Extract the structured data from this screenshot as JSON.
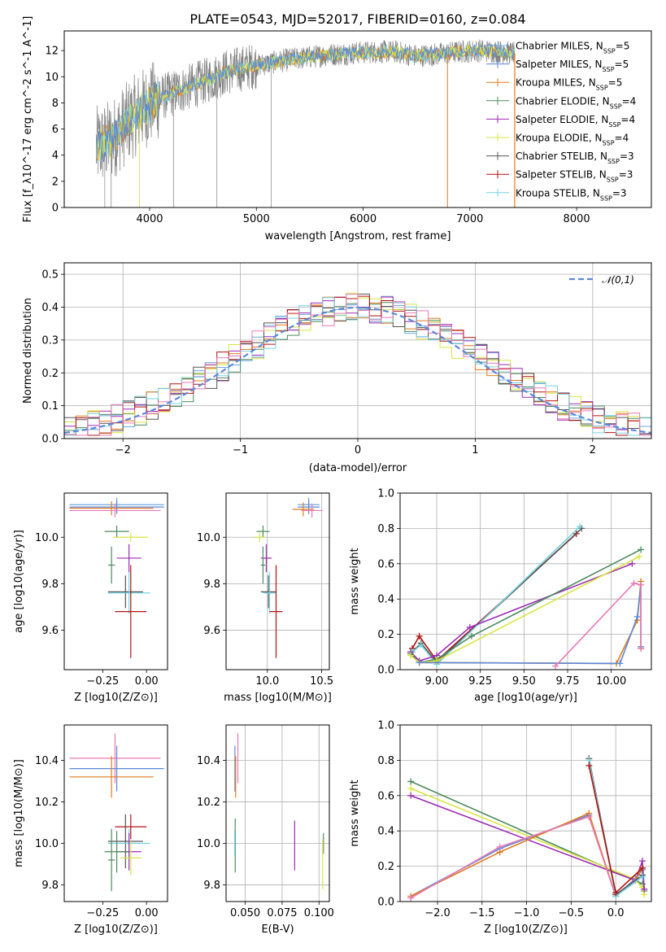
{
  "palette": {
    "Chabrier MILES": "#6fa8dc",
    "Salpeter MILES": "#5c89d6",
    "Kroupa MILES": "#e07b1c",
    "Chabrier ELODIE": "#4e8a5f",
    "Salpeter ELODIE": "#9c2db5",
    "Kroupa ELODIE": "#d9e544",
    "Chabrier STELIB": "#555555",
    "Salpeter STELIB": "#b01313",
    "Kroupa STELIB": "#77d4e0",
    "pink": "#e87ab5",
    "observed": "#808080"
  },
  "chart_data": [
    {
      "id": "spectrum",
      "type": "line",
      "title": "PLATE=0543, MJD=52017, FIBERID=0160, z=0.084",
      "xlabel": "wavelength [Angstrom, rest frame]",
      "ylabel": "Flux [f_λ10^-17 erg cm^-2 s^-1 A^-1]",
      "xlim": [
        3200,
        8700
      ],
      "ylim": [
        0,
        13.5
      ],
      "xticks": [
        "4000",
        "5000",
        "6000",
        "7000",
        "8000"
      ],
      "yticks": [
        "0",
        "2",
        "4",
        "6",
        "8",
        "10",
        "12"
      ],
      "grid": false,
      "legend": "upper-right",
      "legend_entries": [
        {
          "name": "Chabrier MILES",
          "nssp": "5"
        },
        {
          "name": "Salpeter MILES",
          "nssp": "5"
        },
        {
          "name": "Kroupa MILES",
          "nssp": "5"
        },
        {
          "name": "Chabrier ELODIE",
          "nssp": "4"
        },
        {
          "name": "Salpeter ELODIE",
          "nssp": "4"
        },
        {
          "name": "Kroupa ELODIE",
          "nssp": "4"
        },
        {
          "name": "Chabrier STELIB",
          "nssp": "3"
        },
        {
          "name": "Salpeter STELIB",
          "nssp": "3"
        },
        {
          "name": "Kroupa STELIB",
          "nssp": "3"
        }
      ],
      "continuum": {
        "x": [
          3500,
          3650,
          3800,
          3950,
          4100,
          4300,
          4500,
          4700,
          4900,
          5100,
          5300,
          5500,
          5700,
          5900,
          6100,
          6300,
          6500,
          6700,
          6900,
          7100,
          7300,
          7420
        ],
        "y": [
          4.6,
          5.2,
          6.6,
          7.6,
          8.4,
          9.0,
          9.6,
          10.3,
          10.7,
          11.0,
          11.3,
          11.5,
          11.7,
          11.8,
          11.9,
          11.9,
          11.6,
          11.7,
          11.9,
          12.0,
          11.9,
          11.8
        ]
      },
      "model_end_wavelength": 7420
    },
    {
      "id": "residuals",
      "type": "histogram",
      "xlabel": "(data-model)/error",
      "ylabel": "Normed distribution",
      "xlim": [
        -2.5,
        2.5
      ],
      "ylim": [
        0,
        0.535
      ],
      "xticks": [
        "−2",
        "−1",
        "0",
        "1",
        "2"
      ],
      "yticks": [
        "0.0",
        "0.1",
        "0.2",
        "0.3",
        "0.4",
        "0.5"
      ],
      "grid": true,
      "legend": "upper-right",
      "legend_label": "𝒩(0,1)",
      "bin_width": 0.1
    },
    {
      "id": "age-vs-Z",
      "type": "scatter",
      "xlabel": "Z [log10(Z/Z⊙)]",
      "ylabel": "age  [log10(age/yr)]",
      "xlim": [
        -0.47,
        0.12
      ],
      "ylim": [
        9.43,
        10.19
      ],
      "xticks": [
        {
          "v": -0.25,
          "t": "−0.25"
        },
        {
          "v": 0.0,
          "t": "0.00"
        }
      ],
      "yticks": [
        {
          "v": 9.6,
          "t": "9.6"
        },
        {
          "v": 9.8,
          "t": "9.8"
        },
        {
          "v": 10.0,
          "t": "10.0"
        }
      ],
      "grid": false,
      "points": [
        {
          "model": "Chabrier MILES",
          "x": -0.17,
          "xerr": 0.27,
          "y": 10.14,
          "yerr": 0.03
        },
        {
          "model": "Salpeter MILES",
          "x": -0.17,
          "xerr": 0.27,
          "y": 10.13,
          "yerr": 0.03
        },
        {
          "model": "Kroupa MILES",
          "x": -0.2,
          "xerr": 0.24,
          "y": 10.125,
          "yerr": 0.03
        },
        {
          "model": "pink",
          "x": -0.18,
          "xerr": 0.26,
          "y": 10.115,
          "yerr": 0.03
        },
        {
          "model": "Chabrier ELODIE",
          "x": -0.17,
          "xerr": 0.07,
          "y": 10.025,
          "yerr": 0.025
        },
        {
          "model": "Kroupa ELODIE",
          "x": -0.09,
          "xerr": 0.1,
          "y": 10.0,
          "yerr": 0.02
        },
        {
          "model": "Salpeter ELODIE",
          "x": -0.1,
          "xerr": 0.07,
          "y": 9.91,
          "yerr": 0.06
        },
        {
          "model": "Chabrier ELODIE",
          "x": -0.2,
          "xerr": 0.02,
          "y": 9.88,
          "yerr": 0.08
        },
        {
          "model": "Chabrier STELIB",
          "x": -0.12,
          "xerr": 0.1,
          "y": 9.765,
          "yerr": 0.07
        },
        {
          "model": "Kroupa STELIB",
          "x": -0.1,
          "xerr": 0.12,
          "y": 9.76,
          "yerr": 0.09
        },
        {
          "model": "Salpeter STELIB",
          "x": -0.09,
          "xerr": 0.09,
          "y": 9.68,
          "yerr": 0.2
        }
      ]
    },
    {
      "id": "age-vs-mass",
      "type": "scatter",
      "xlabel": "mass [log10(M/M⊙)]",
      "ylabel": "",
      "xlim": [
        9.62,
        10.57
      ],
      "ylim": [
        9.43,
        10.19
      ],
      "xticks": [
        {
          "v": 10.0,
          "t": "10.0"
        },
        {
          "v": 10.5,
          "t": "10.5"
        }
      ],
      "yticks": [
        {
          "v": 9.6,
          "t": "9.6"
        },
        {
          "v": 9.8,
          "t": "9.8"
        },
        {
          "v": 10.0,
          "t": "10.0"
        }
      ],
      "grid": true,
      "points": [
        {
          "model": "Chabrier MILES",
          "x": 10.38,
          "xerr": 0.1,
          "y": 10.14,
          "yerr": 0.03
        },
        {
          "model": "Salpeter MILES",
          "x": 10.38,
          "xerr": 0.1,
          "y": 10.13,
          "yerr": 0.03
        },
        {
          "model": "Kroupa MILES",
          "x": 10.33,
          "xerr": 0.1,
          "y": 10.12,
          "yerr": 0.03
        },
        {
          "model": "pink",
          "x": 10.41,
          "xerr": 0.1,
          "y": 10.115,
          "yerr": 0.03
        },
        {
          "model": "Chabrier ELODIE",
          "x": 9.96,
          "xerr": 0.06,
          "y": 10.025,
          "yerr": 0.025
        },
        {
          "model": "Kroupa ELODIE",
          "x": 9.93,
          "xerr": 0.05,
          "y": 10.0,
          "yerr": 0.02
        },
        {
          "model": "Salpeter ELODIE",
          "x": 9.99,
          "xerr": 0.05,
          "y": 9.91,
          "yerr": 0.06
        },
        {
          "model": "Chabrier ELODIE",
          "x": 9.96,
          "xerr": 0.02,
          "y": 9.88,
          "yerr": 0.08
        },
        {
          "model": "Chabrier STELIB",
          "x": 10.01,
          "xerr": 0.07,
          "y": 9.765,
          "yerr": 0.07
        },
        {
          "model": "Kroupa STELIB",
          "x": 10.02,
          "xerr": 0.06,
          "y": 9.76,
          "yerr": 0.09
        },
        {
          "model": "Salpeter STELIB",
          "x": 10.08,
          "xerr": 0.06,
          "y": 9.68,
          "yerr": 0.2
        }
      ]
    },
    {
      "id": "weight-vs-age",
      "type": "line",
      "xlabel": "age  [log10(age/yr)]",
      "ylabel": "mass weight",
      "xlim": [
        8.79,
        10.23
      ],
      "ylim": [
        0,
        1.0
      ],
      "xticks": [
        {
          "v": 9.0,
          "t": "9.00"
        },
        {
          "v": 9.25,
          "t": "9.25"
        },
        {
          "v": 9.5,
          "t": "9.50"
        },
        {
          "v": 9.75,
          "t": "9.75"
        },
        {
          "v": 10.0,
          "t": "10.00"
        }
      ],
      "yticks": [
        {
          "v": 0.0,
          "t": "0.0"
        },
        {
          "v": 0.2,
          "t": "0.2"
        },
        {
          "v": 0.4,
          "t": "0.4"
        },
        {
          "v": 0.6,
          "t": "0.6"
        },
        {
          "v": 0.8,
          "t": "0.8"
        },
        {
          "v": 1.0,
          "t": "1.0"
        }
      ],
      "grid": true,
      "series": [
        {
          "model": "Salpeter STELIB",
          "x": [
            8.86,
            8.9,
            9.0,
            9.8
          ],
          "y": [
            0.12,
            0.19,
            0.05,
            0.77
          ]
        },
        {
          "model": "Chabrier STELIB",
          "x": [
            8.86,
            8.91,
            9.0,
            9.83
          ],
          "y": [
            0.1,
            0.15,
            0.04,
            0.8
          ]
        },
        {
          "model": "Kroupa STELIB",
          "x": [
            8.86,
            8.91,
            9.0,
            9.82
          ],
          "y": [
            0.1,
            0.14,
            0.03,
            0.81
          ]
        },
        {
          "model": "Salpeter ELODIE",
          "x": [
            8.85,
            8.9,
            9.0,
            9.19,
            10.12
          ],
          "y": [
            0.1,
            0.05,
            0.08,
            0.24,
            0.6
          ]
        },
        {
          "model": "Chabrier ELODIE",
          "x": [
            8.85,
            8.9,
            9.0,
            9.2,
            10.17
          ],
          "y": [
            0.09,
            0.04,
            0.06,
            0.19,
            0.68
          ]
        },
        {
          "model": "Kroupa ELODIE",
          "x": [
            8.85,
            8.9,
            9.0,
            10.16
          ],
          "y": [
            0.08,
            0.04,
            0.05,
            0.64
          ]
        },
        {
          "model": "Kroupa MILES",
          "x": [
            8.9,
            10.03,
            10.15,
            10.17,
            10.17
          ],
          "y": [
            0.04,
            0.035,
            0.28,
            0.5,
            0.12
          ]
        },
        {
          "model": "Salpeter MILES",
          "x": [
            8.9,
            10.05,
            10.15,
            10.17,
            10.17
          ],
          "y": [
            0.04,
            0.035,
            0.3,
            0.48,
            0.13
          ]
        },
        {
          "model": "pink",
          "x": [
            9.68,
            10.13,
            10.17,
            10.17
          ],
          "y": [
            0.02,
            0.49,
            0.48,
            0.12
          ]
        }
      ]
    },
    {
      "id": "mass-vs-Z",
      "type": "scatter",
      "xlabel": "Z [log10(Z/Z⊙)]",
      "ylabel": "mass [log10(M/M⊙)]",
      "xlim": [
        -0.47,
        0.12
      ],
      "ylim": [
        9.72,
        10.57
      ],
      "xticks": [
        {
          "v": -0.25,
          "t": "−0.25"
        },
        {
          "v": 0.0,
          "t": "0.00"
        }
      ],
      "yticks": [
        {
          "v": 9.8,
          "t": "9.8"
        },
        {
          "v": 10.0,
          "t": "10.0"
        },
        {
          "v": 10.2,
          "t": "10.2"
        },
        {
          "v": 10.4,
          "t": "10.4"
        }
      ],
      "grid": false,
      "points": [
        {
          "model": "pink",
          "x": -0.18,
          "xerr": 0.26,
          "y": 10.41,
          "yerr": 0.12
        },
        {
          "model": "Salpeter MILES",
          "x": -0.17,
          "xerr": 0.27,
          "y": 10.36,
          "yerr": 0.11
        },
        {
          "model": "Kroupa MILES",
          "x": -0.2,
          "xerr": 0.24,
          "y": 10.32,
          "yerr": 0.1
        },
        {
          "model": "Salpeter STELIB",
          "x": -0.09,
          "xerr": 0.09,
          "y": 10.08,
          "yerr": 0.06
        },
        {
          "model": "Chabrier STELIB",
          "x": -0.12,
          "xerr": 0.1,
          "y": 10.01,
          "yerr": 0.13
        },
        {
          "model": "Kroupa STELIB",
          "x": -0.1,
          "xerr": 0.12,
          "y": 10.0,
          "yerr": 0.07
        },
        {
          "model": "Salpeter ELODIE",
          "x": -0.1,
          "xerr": 0.07,
          "y": 9.96,
          "yerr": 0.09
        },
        {
          "model": "Chabrier ELODIE",
          "x": -0.17,
          "xerr": 0.07,
          "y": 9.96,
          "yerr": 0.1
        },
        {
          "model": "Kroupa ELODIE",
          "x": -0.09,
          "xerr": 0.06,
          "y": 9.93,
          "yerr": 0.08
        },
        {
          "model": "Chabrier ELODIE",
          "x": -0.2,
          "xerr": 0.02,
          "y": 9.92,
          "yerr": 0.15
        }
      ]
    },
    {
      "id": "mass-vs-EBV",
      "type": "scatter",
      "xlabel": "E(B-V)",
      "ylabel": "",
      "xlim": [
        0.037,
        0.107
      ],
      "ylim": [
        9.72,
        10.57
      ],
      "xticks": [
        {
          "v": 0.05,
          "t": "0.050"
        },
        {
          "v": 0.075,
          "t": "0.075"
        },
        {
          "v": 0.1,
          "t": "0.100"
        }
      ],
      "yticks": [
        {
          "v": 9.8,
          "t": "9.8"
        },
        {
          "v": 10.0,
          "t": "10.0"
        },
        {
          "v": 10.2,
          "t": "10.2"
        },
        {
          "v": 10.4,
          "t": "10.4"
        }
      ],
      "grid": true,
      "points": [
        {
          "model": "pink",
          "x": 0.045,
          "y": 10.41,
          "yerr": 0.12
        },
        {
          "model": "Salpeter MILES",
          "x": 0.043,
          "y": 10.36,
          "yerr": 0.11
        },
        {
          "model": "Kroupa MILES",
          "x": 0.0435,
          "y": 10.32,
          "yerr": 0.1
        },
        {
          "model": "Chabrier ELODIE",
          "x": 0.0432,
          "y": 9.99,
          "yerr": 0.13
        },
        {
          "model": "Kroupa STELIB",
          "x": 0.0428,
          "y": 10.0,
          "yerr": 0.06
        },
        {
          "model": "Salpeter ELODIE",
          "x": 0.0835,
          "y": 9.99,
          "yerr": 0.12
        },
        {
          "model": "Chabrier ELODIE",
          "x": 0.103,
          "y": 10.0,
          "yerr": 0.05
        },
        {
          "model": "Kroupa ELODIE",
          "x": 0.1025,
          "y": 9.9,
          "yerr": 0.12
        }
      ]
    },
    {
      "id": "weight-vs-Z",
      "type": "line",
      "xlabel": "Z [log10(Z/Z⊙)]",
      "ylabel": "mass weight",
      "xlim": [
        -2.42,
        0.4
      ],
      "ylim": [
        0,
        1.0
      ],
      "xticks": [
        {
          "v": -2.0,
          "t": "−2.0"
        },
        {
          "v": -1.5,
          "t": "−1.5"
        },
        {
          "v": -1.0,
          "t": "−1.0"
        },
        {
          "v": -0.5,
          "t": "−0.5"
        },
        {
          "v": 0.0,
          "t": "0.0"
        }
      ],
      "yticks": [
        {
          "v": 0.0,
          "t": "0.0"
        },
        {
          "v": 0.2,
          "t": "0.2"
        },
        {
          "v": 0.4,
          "t": "0.4"
        },
        {
          "v": 0.6,
          "t": "0.6"
        },
        {
          "v": 0.8,
          "t": "0.8"
        },
        {
          "v": 1.0,
          "t": "1.0"
        }
      ],
      "grid": true,
      "series": [
        {
          "model": "Chabrier ELODIE",
          "x": [
            -2.3,
            0.22,
            0.3,
            0.32
          ],
          "y": [
            0.68,
            0.12,
            0.1,
            0.06
          ]
        },
        {
          "model": "Kroupa ELODIE",
          "x": [
            -2.3,
            0.2,
            0.3,
            0.32
          ],
          "y": [
            0.64,
            0.13,
            0.08,
            0.04
          ]
        },
        {
          "model": "Salpeter ELODIE",
          "x": [
            -2.3,
            0.22,
            0.3,
            0.32
          ],
          "y": [
            0.6,
            0.12,
            0.23,
            0.07
          ]
        },
        {
          "model": "Salpeter MILES",
          "x": [
            -2.3,
            -1.3,
            -0.3,
            0.0,
            0.22,
            0.3
          ],
          "y": [
            0.03,
            0.3,
            0.49,
            0.03,
            0.13,
            0.18
          ]
        },
        {
          "model": "Kroupa MILES",
          "x": [
            -2.3,
            -1.3,
            -0.3,
            0.0,
            0.22,
            0.3
          ],
          "y": [
            0.03,
            0.28,
            0.5,
            0.03,
            0.12,
            0.19
          ]
        },
        {
          "model": "pink",
          "x": [
            -2.3,
            -1.3,
            -0.3,
            0.0,
            0.22
          ],
          "y": [
            0.02,
            0.31,
            0.48,
            0.03,
            0.12
          ]
        },
        {
          "model": "Chabrier STELIB",
          "x": [
            -0.3,
            0.0,
            0.3
          ],
          "y": [
            0.81,
            0.04,
            0.15
          ]
        },
        {
          "model": "Kroupa STELIB",
          "x": [
            -0.3,
            0.0,
            0.3
          ],
          "y": [
            0.8,
            0.03,
            0.14
          ]
        },
        {
          "model": "Salpeter STELIB",
          "x": [
            -0.3,
            0.0,
            0.3
          ],
          "y": [
            0.77,
            0.05,
            0.19
          ]
        }
      ]
    }
  ]
}
